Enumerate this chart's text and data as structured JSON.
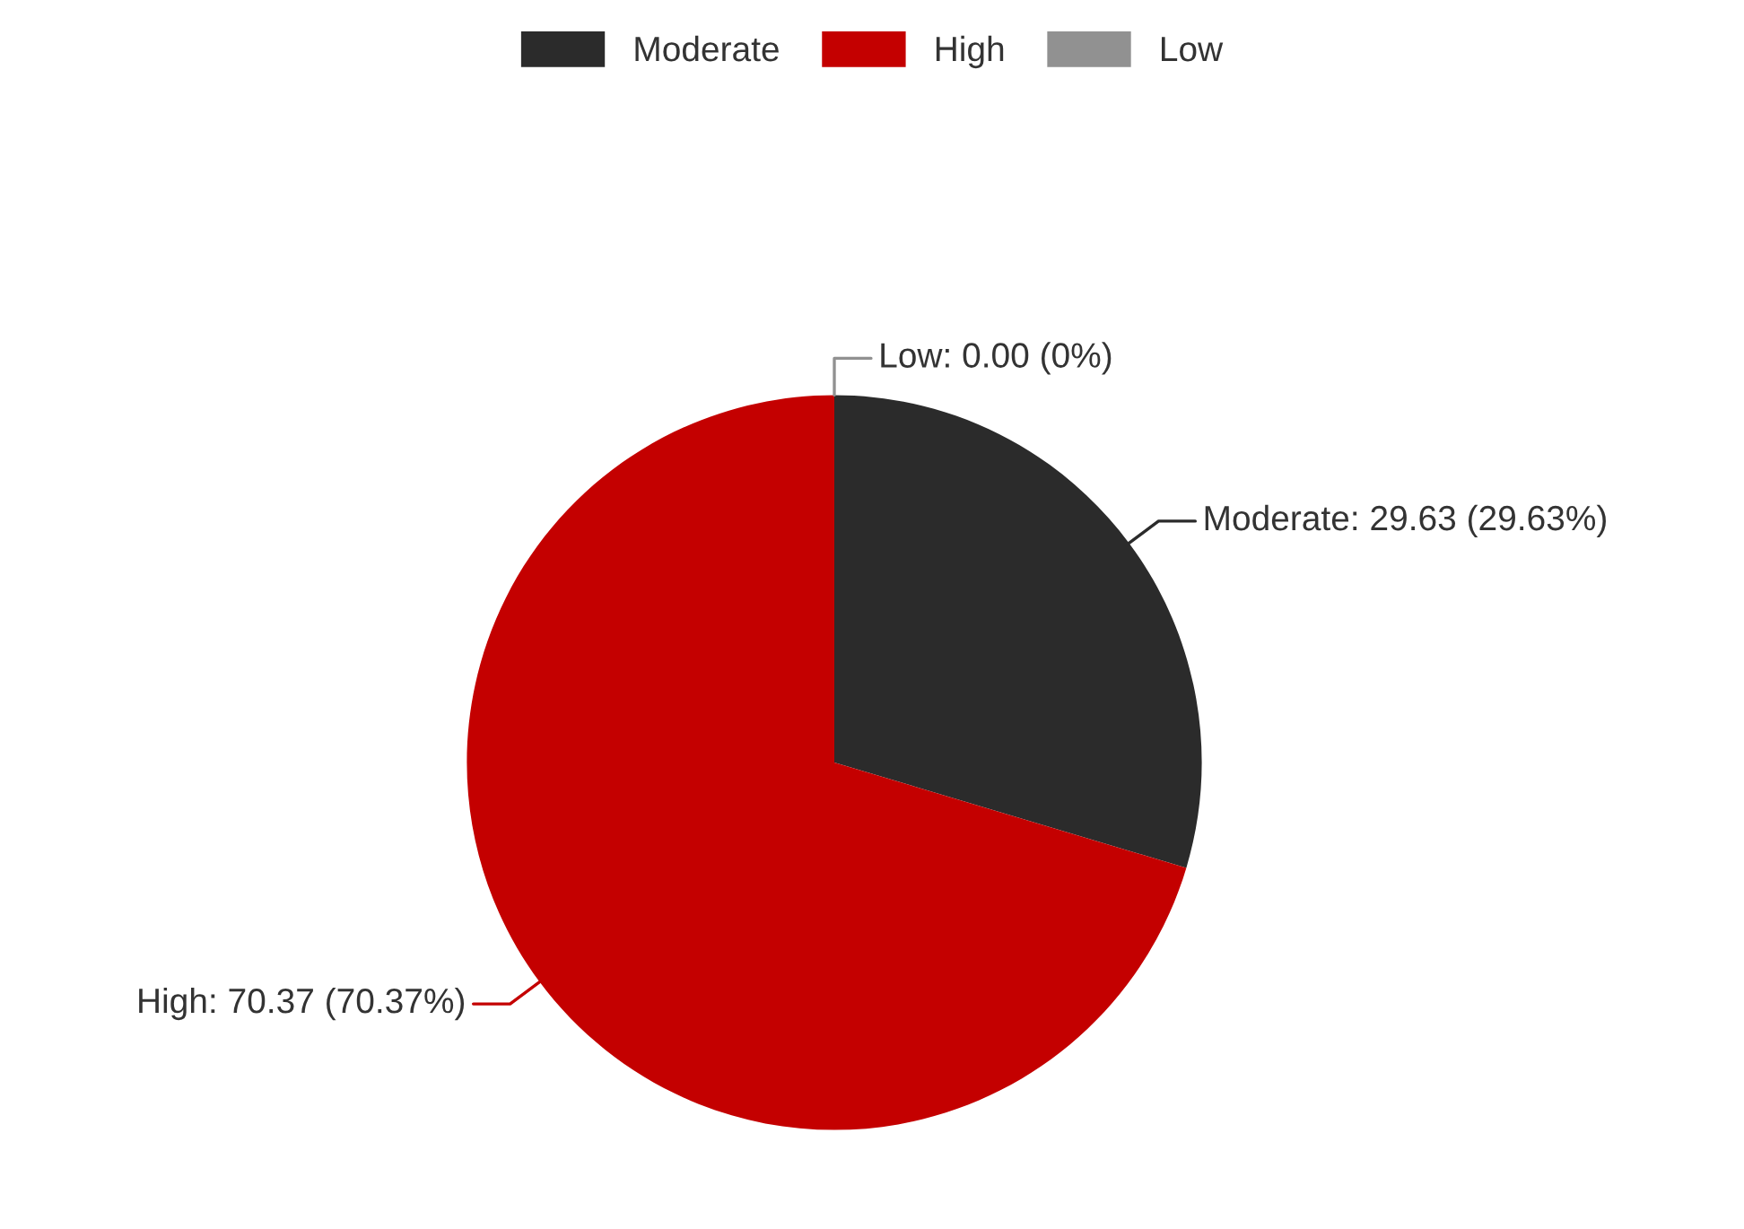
{
  "chart_data": {
    "type": "pie",
    "categories": [
      "Moderate",
      "High",
      "Low"
    ],
    "values": [
      29.63,
      70.37,
      0
    ],
    "colors": [
      "#2b2b2b",
      "#c40000",
      "#919191"
    ],
    "value_labels": [
      "Moderate: 29.63 (29.63%)",
      "High: 70.37 (70.37%)",
      "Low: 0.00 (0%)"
    ],
    "legend": "top"
  }
}
